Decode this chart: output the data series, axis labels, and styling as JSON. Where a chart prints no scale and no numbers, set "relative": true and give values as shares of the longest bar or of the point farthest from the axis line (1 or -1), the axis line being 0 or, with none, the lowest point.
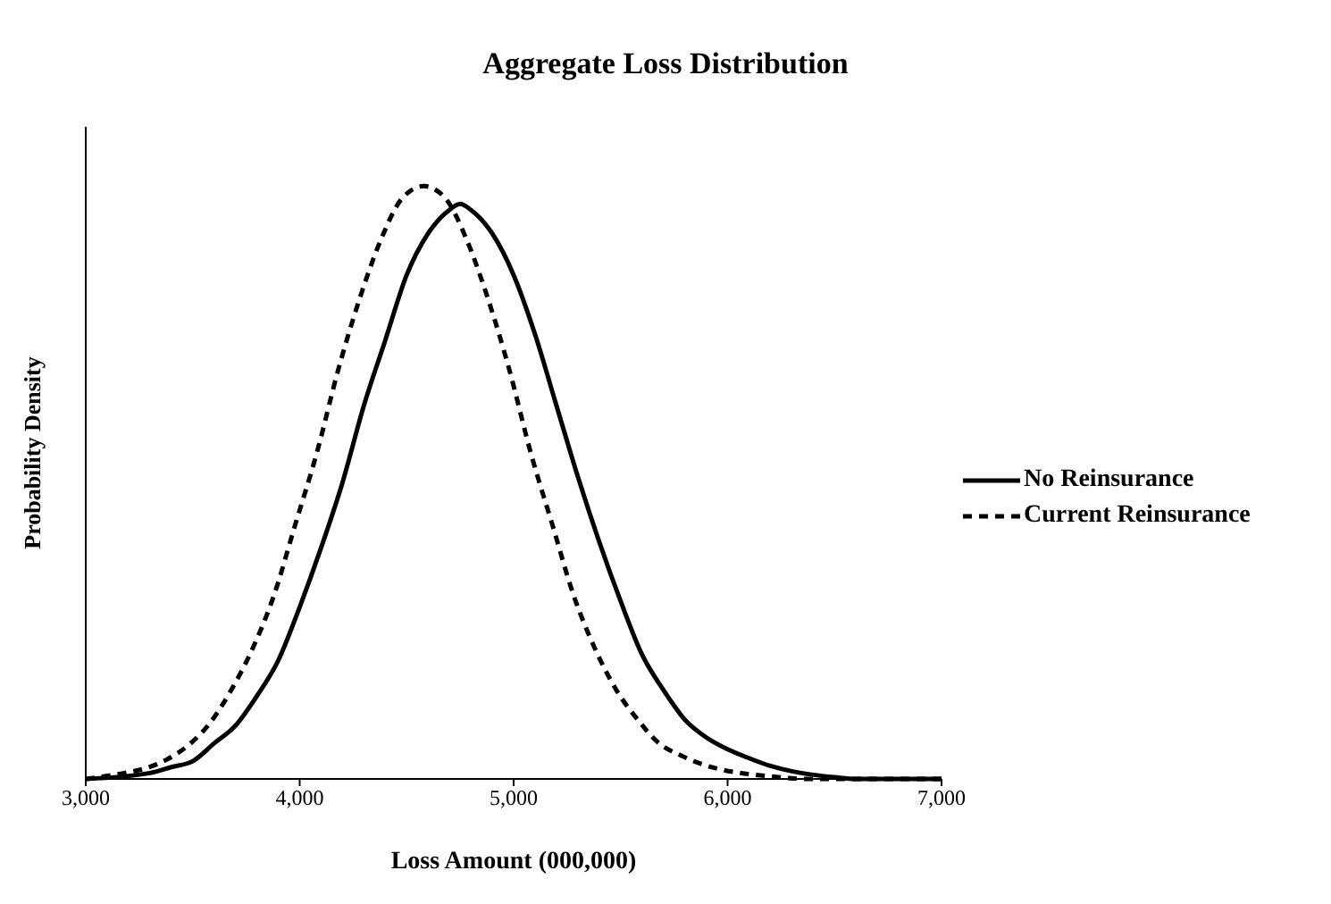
{
  "chart_data": {
    "type": "line",
    "title": "Aggregate Loss Distribution",
    "xlabel": "Loss Amount (000,000)",
    "ylabel": "Probability Density",
    "relative": true,
    "xlim": [
      3000,
      7000
    ],
    "xticks": [
      {
        "value": 3000,
        "label": "3,000"
      },
      {
        "value": 4000,
        "label": "4,000"
      },
      {
        "value": 5000,
        "label": "5,000"
      },
      {
        "value": 6000,
        "label": "6,000"
      },
      {
        "value": 7000,
        "label": "7,000"
      }
    ],
    "legend": "right",
    "marker": "none",
    "series": [
      {
        "name": "No Reinsurance",
        "color": "#000000",
        "line_style": "solid",
        "x": [
          3000,
          3300,
          3400,
          3500,
          3600,
          3700,
          3800,
          3900,
          4000,
          4100,
          4200,
          4300,
          4400,
          4500,
          4600,
          4700,
          4750,
          4800,
          4900,
          5000,
          5100,
          5200,
          5300,
          5400,
          5500,
          5600,
          5700,
          5800,
          5900,
          6000,
          6100,
          6200,
          6300,
          6400,
          6500,
          6600,
          7000
        ],
        "values": [
          0,
          0.01,
          0.02,
          0.03,
          0.06,
          0.09,
          0.14,
          0.2,
          0.29,
          0.39,
          0.5,
          0.63,
          0.74,
          0.85,
          0.92,
          0.96,
          0.97,
          0.96,
          0.92,
          0.85,
          0.75,
          0.63,
          0.51,
          0.4,
          0.3,
          0.21,
          0.15,
          0.1,
          0.07,
          0.05,
          0.035,
          0.022,
          0.013,
          0.007,
          0.003,
          0,
          0
        ]
      },
      {
        "name": "Current Reinsurance",
        "color": "#000000",
        "line_style": "dashed",
        "x": [
          3000,
          3180,
          3280,
          3380,
          3480,
          3580,
          3680,
          3780,
          3880,
          3980,
          4080,
          4180,
          4280,
          4380,
          4480,
          4580,
          4680,
          4780,
          4880,
          4980,
          5080,
          5180,
          5280,
          5380,
          5480,
          5580,
          5680,
          5780,
          5880,
          5980,
          6080,
          6180,
          6380,
          7000
        ],
        "values": [
          0,
          0.01,
          0.018,
          0.033,
          0.057,
          0.094,
          0.15,
          0.22,
          0.31,
          0.43,
          0.55,
          0.69,
          0.81,
          0.91,
          0.98,
          1,
          0.98,
          0.91,
          0.81,
          0.69,
          0.55,
          0.43,
          0.31,
          0.22,
          0.15,
          0.1,
          0.06,
          0.04,
          0.025,
          0.015,
          0.009,
          0.005,
          0,
          0
        ]
      }
    ]
  }
}
